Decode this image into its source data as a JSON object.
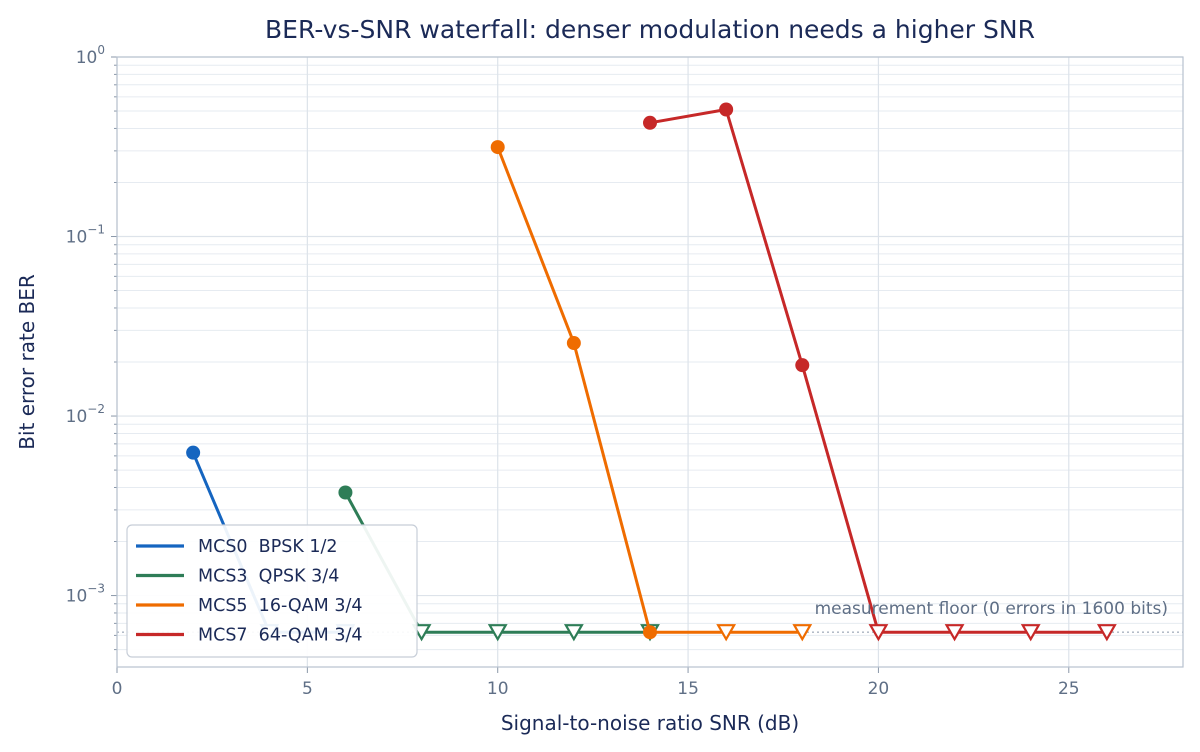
{
  "chart_data": {
    "type": "line",
    "title": "BER-vs-SNR waterfall: denser modulation needs a higher SNR",
    "xlabel": "Signal-to-noise ratio SNR (dB)",
    "ylabel": "Bit error rate BER",
    "xlim": [
      0,
      28
    ],
    "ylim": [
      0.0004,
      1
    ],
    "yscale": "log",
    "x_ticks": [
      0,
      5,
      10,
      15,
      20,
      25
    ],
    "y_ticks": [
      {
        "value": 1,
        "base": "10",
        "exp": "0"
      },
      {
        "value": 0.1,
        "base": "10",
        "exp": "−1"
      },
      {
        "value": 0.01,
        "base": "10",
        "exp": "−2"
      },
      {
        "value": 0.001,
        "base": "10",
        "exp": "−3"
      }
    ],
    "grid": true,
    "legend_position": "lower-left",
    "floor": {
      "value": 0.000625,
      "label": "measurement floor (0 errors in 1600 bits)"
    },
    "series": [
      {
        "name": "MCS0  BPSK 1/2",
        "color": "#1565c0",
        "points": [
          {
            "x": 2,
            "y": 0.00625,
            "floor": false
          },
          {
            "x": 4,
            "y": 0.000625,
            "floor": true
          },
          {
            "x": 6,
            "y": 0.000625,
            "floor": true
          }
        ]
      },
      {
        "name": "MCS3  QPSK 3/4",
        "color": "#2e7d57",
        "points": [
          {
            "x": 6,
            "y": 0.00375,
            "floor": false
          },
          {
            "x": 8,
            "y": 0.000625,
            "floor": true
          },
          {
            "x": 10,
            "y": 0.000625,
            "floor": true
          },
          {
            "x": 12,
            "y": 0.000625,
            "floor": true
          },
          {
            "x": 14,
            "y": 0.000625,
            "floor": true
          }
        ]
      },
      {
        "name": "MCS5  16-QAM 3/4",
        "color": "#ef6c00",
        "points": [
          {
            "x": 10,
            "y": 0.315,
            "floor": false
          },
          {
            "x": 12,
            "y": 0.0255,
            "floor": false
          },
          {
            "x": 14,
            "y": 0.000625,
            "floor": false
          },
          {
            "x": 16,
            "y": 0.000625,
            "floor": true
          },
          {
            "x": 18,
            "y": 0.000625,
            "floor": true
          }
        ]
      },
      {
        "name": "MCS7  64-QAM 3/4",
        "color": "#c62828",
        "points": [
          {
            "x": 14,
            "y": 0.43,
            "floor": false
          },
          {
            "x": 16,
            "y": 0.51,
            "floor": false
          },
          {
            "x": 18,
            "y": 0.0192,
            "floor": false
          },
          {
            "x": 20,
            "y": 0.000625,
            "floor": true
          },
          {
            "x": 22,
            "y": 0.000625,
            "floor": true
          },
          {
            "x": 24,
            "y": 0.000625,
            "floor": true
          },
          {
            "x": 26,
            "y": 0.000625,
            "floor": true
          }
        ]
      }
    ]
  }
}
